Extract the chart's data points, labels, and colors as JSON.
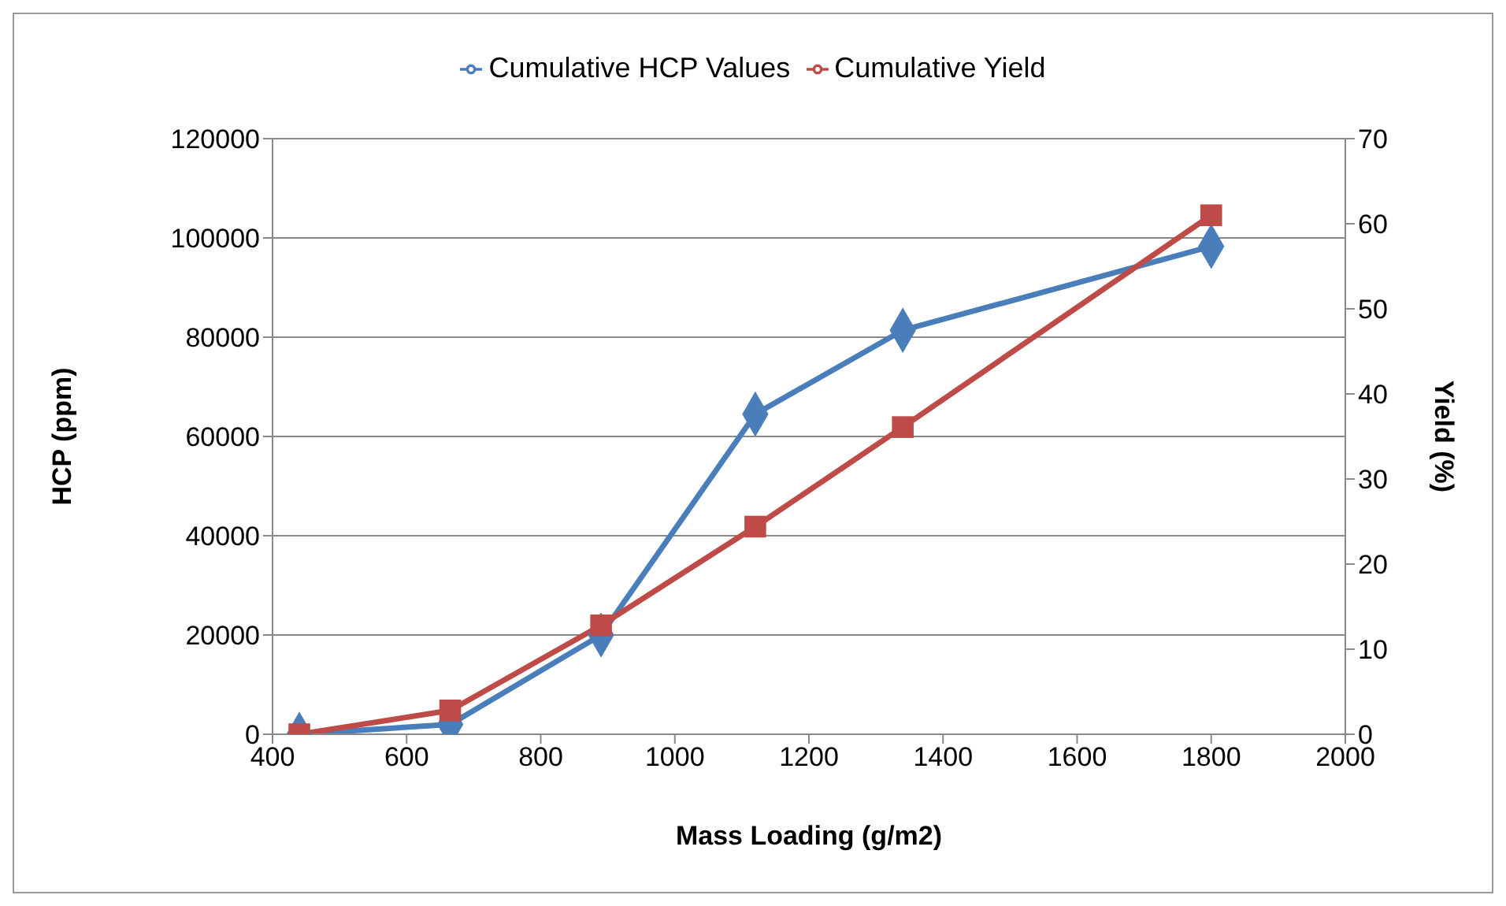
{
  "chart_data": {
    "type": "line",
    "xlabel": "Mass Loading (g/m2)",
    "ylabel": "HCP (ppm)",
    "y2label": "Yield (%)",
    "x": [
      440,
      665,
      890,
      1120,
      1340,
      1800
    ],
    "series": [
      {
        "name": "Cumulative HCP Values",
        "color": "#4a7ebb",
        "marker": "diamond",
        "values": [
          0,
          2000,
          20000,
          64500,
          81400,
          98300
        ]
      },
      {
        "name": "Cumulative Yield",
        "color": "#be4b48",
        "marker": "square",
        "axis": "y2",
        "values": [
          0,
          2.8,
          12.8,
          24.4,
          36.1,
          61
        ]
      }
    ],
    "xlim": [
      400,
      2000
    ],
    "xticks": [
      400,
      600,
      800,
      1000,
      1200,
      1400,
      1600,
      1800,
      2000
    ],
    "ylim": [
      0,
      120000
    ],
    "yticks": [
      0,
      20000,
      40000,
      60000,
      80000,
      100000,
      120000
    ],
    "y2lim": [
      0,
      70
    ],
    "y2ticks": [
      0,
      10,
      20,
      30,
      40,
      50,
      60,
      70
    ],
    "grid": "y",
    "legend": "top",
    "line_style": "solid"
  }
}
